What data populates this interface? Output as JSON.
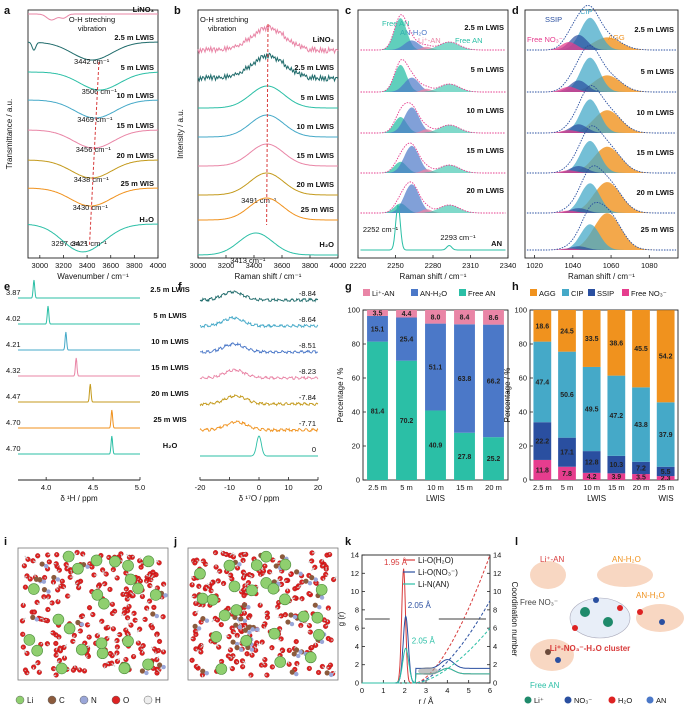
{
  "colors": {
    "teal": "#2bbfa6",
    "blue": "#4b78c8",
    "pink": "#e985a6",
    "orange": "#f0921e",
    "cyan": "#45a9c8",
    "navy": "#2a4fa0",
    "magenta": "#e63d8e",
    "darkteal": "#1f6b6b",
    "olive": "#c49a1c",
    "red": "#d83a3a",
    "gray": "#888888"
  },
  "labels": {
    "samples": [
      "LiNO₃",
      "2.5 m LWIS",
      "5 m LWIS",
      "10 m LWIS",
      "15 m LWIS",
      "20 m LWIS",
      "25 m WIS",
      "H₂O"
    ],
    "lwis_short": [
      "2.5 m LWIS",
      "5 m LWIS",
      "10 m LWIS",
      "15 m LWIS",
      "20 m LWIS"
    ],
    "lwis_25": [
      "2.5 m LWIS",
      "5 m LWIS",
      "10 m LWIS",
      "15 m LWIS",
      "20 m LWIS",
      "25 m WIS"
    ]
  },
  "chart_data": [
    {
      "panel": "a",
      "type": "line",
      "title": "",
      "xlabel": "Wavenumber / cm⁻¹",
      "ylabel": "Transmittance / a.u.",
      "xlim": [
        2900,
        4000
      ],
      "x_ticks": [
        3000,
        3200,
        3400,
        3600,
        3800,
        4000
      ],
      "annotation": "O-H streching vibration",
      "series": [
        {
          "name": "LiNO₃",
          "peak_label": ""
        },
        {
          "name": "2.5 m LWIS",
          "peak": 3442,
          "peak_label": "3442 cm⁻¹"
        },
        {
          "name": "5 m LWIS",
          "peak": 3506,
          "peak_label": "3506 cm⁻¹"
        },
        {
          "name": "10 m LWIS",
          "peak": 3469,
          "peak_label": "3469 cm⁻¹"
        },
        {
          "name": "15 m LWIS",
          "peak": 3456,
          "peak_label": "3456 cm⁻¹"
        },
        {
          "name": "20 m LWIS",
          "peak": 3438,
          "peak_label": "3438 cm⁻¹"
        },
        {
          "name": "25 m WIS",
          "peak": 3430,
          "peak_label": "3430 cm⁻¹"
        },
        {
          "name": "H₂O",
          "peak": 3421,
          "peak_label": "3421 cm⁻¹"
        },
        {
          "name": "H₂O shoulder",
          "peak": 3297,
          "peak_label": "3297 cm⁻¹"
        }
      ]
    },
    {
      "panel": "b",
      "type": "line",
      "xlabel": "Raman shift / cm⁻¹",
      "ylabel": "Intensity / a.u.",
      "xlim": [
        3000,
        4000
      ],
      "x_ticks": [
        3000,
        3200,
        3400,
        3600,
        3800,
        4000
      ],
      "annotation": "O-H stretching vibration",
      "series": [
        {
          "name": "LiNO₃",
          "peak": 3500
        },
        {
          "name": "2.5 m LWIS",
          "peak": 3500
        },
        {
          "name": "5 m LWIS",
          "peak": 3495
        },
        {
          "name": "10 m LWIS",
          "peak": 3493
        },
        {
          "name": "15 m LWIS",
          "peak": 3492
        },
        {
          "name": "20 m LWIS",
          "peak": 3491,
          "peak_label": "3491 cm⁻¹"
        },
        {
          "name": "25 m WIS",
          "peak": 3488
        },
        {
          "name": "H₂O",
          "peak": 3413,
          "peak_label": "3413 cm⁻¹"
        }
      ]
    },
    {
      "panel": "c",
      "type": "line",
      "xlabel": "Raman shift / cm⁻¹",
      "xlim": [
        2220,
        2340
      ],
      "x_ticks": [
        2220,
        2250,
        2280,
        2310,
        2340
      ],
      "legend": [
        "Free AN",
        "AN-H₂O",
        "Li⁺-AN",
        "Free AN"
      ],
      "rows": [
        "2.5 m LWIS",
        "5 m LWIS",
        "10 m LWIS",
        "15 m LWIS",
        "20 m LWIS",
        "AN"
      ],
      "peak_labels": [
        "2252 cm⁻¹",
        "2293 cm⁻¹"
      ]
    },
    {
      "panel": "d",
      "type": "line",
      "xlabel": "Raman shift / cm⁻¹",
      "xlim": [
        1015,
        1095
      ],
      "x_ticks": [
        1020,
        1040,
        1060,
        1080
      ],
      "legend": [
        "SSIP",
        "CIP",
        "Free NO₃⁻",
        "AGG"
      ],
      "rows": [
        "2.5 m LWIS",
        "5 m LWIS",
        "10 m LWIS",
        "15 m LWIS",
        "20 m LWIS",
        "25 m WIS"
      ]
    },
    {
      "panel": "e",
      "type": "line",
      "xlabel": "δ ¹H / ppm",
      "xlim": [
        3.7,
        5.0
      ],
      "x_ticks": [
        4.0,
        4.5,
        5.0
      ],
      "rows": [
        {
          "name": "2.5 m LWIS",
          "shift": 3.87
        },
        {
          "name": "5 m LWIS",
          "shift": 4.02
        },
        {
          "name": "10 m LWIS",
          "shift": 4.21
        },
        {
          "name": "15 m LWIS",
          "shift": 4.32
        },
        {
          "name": "20 m LWIS",
          "shift": 4.47
        },
        {
          "name": "25 m WIS",
          "shift": 4.7
        },
        {
          "name": "H₂O",
          "shift": 4.7
        }
      ]
    },
    {
      "panel": "f",
      "type": "line",
      "xlabel": "δ ¹⁷O / ppm",
      "xlim": [
        -20,
        20
      ],
      "x_ticks": [
        -20,
        -10,
        0,
        10,
        20
      ],
      "rows": [
        {
          "name": "2.5 m LWIS",
          "shift": -8.84
        },
        {
          "name": "5 m LWIS",
          "shift": -8.64
        },
        {
          "name": "10 m LWIS",
          "shift": -8.51
        },
        {
          "name": "15 m LWIS",
          "shift": -8.23
        },
        {
          "name": "20 m LWIS",
          "shift": -7.84
        },
        {
          "name": "25 m WIS",
          "shift": -7.71
        },
        {
          "name": "H₂O",
          "shift": 0
        }
      ]
    },
    {
      "panel": "g",
      "type": "bar",
      "stacked": true,
      "ylabel": "Percentage / %",
      "xlabel": "LWIS",
      "ylim": [
        0,
        100
      ],
      "y_ticks": [
        0,
        20,
        40,
        60,
        80,
        100
      ],
      "categories": [
        "2.5 m",
        "5 m",
        "10 m",
        "15 m",
        "20 m"
      ],
      "series": [
        {
          "name": "Free AN",
          "values": [
            81.4,
            70.2,
            40.9,
            27.8,
            25.2
          ]
        },
        {
          "name": "AN-H₂O",
          "values": [
            15.1,
            25.4,
            51.1,
            63.8,
            66.2
          ]
        },
        {
          "name": "Li⁺-AN",
          "values": [
            3.5,
            4.4,
            8.0,
            8.4,
            8.6
          ]
        }
      ],
      "legend": [
        "Li⁺-AN",
        "AN-H₂O",
        "Free AN"
      ]
    },
    {
      "panel": "h",
      "type": "bar",
      "stacked": true,
      "ylabel": "Percentage / %",
      "xlabels": [
        "LWIS",
        "WIS"
      ],
      "ylim": [
        0,
        100
      ],
      "y_ticks": [
        0,
        20,
        40,
        60,
        80,
        100
      ],
      "categories": [
        "2.5 m",
        "5 m",
        "10 m",
        "15 m",
        "20 m",
        "25 m"
      ],
      "series": [
        {
          "name": "Free NO₃⁻",
          "values": [
            11.8,
            7.8,
            4.2,
            3.9,
            3.5,
            2.3
          ]
        },
        {
          "name": "SSIP",
          "values": [
            22.2,
            17.1,
            12.8,
            10.3,
            7.2,
            5.5
          ]
        },
        {
          "name": "CIP",
          "values": [
            47.4,
            50.6,
            49.5,
            47.2,
            43.8,
            37.9
          ]
        },
        {
          "name": "AGG",
          "values": [
            18.6,
            24.5,
            33.5,
            38.6,
            45.5,
            54.2
          ]
        }
      ],
      "legend": [
        "AGG",
        "CIP",
        "SSIP",
        "Free NO₃⁻"
      ]
    },
    {
      "panel": "k",
      "type": "line",
      "xlabel": "r / Å",
      "ylabel": "g (r)",
      "ylabel2": "Coordination number",
      "xlim": [
        0,
        6
      ],
      "ylim": [
        0,
        14
      ],
      "y2lim": [
        0,
        14
      ],
      "x_ticks": [
        0,
        1,
        2,
        3,
        4,
        5,
        6
      ],
      "y_ticks": [
        0,
        2,
        4,
        6,
        8,
        10,
        12,
        14
      ],
      "series": [
        {
          "name": "Li-O(H₂O)",
          "peak_r": 1.95,
          "peak_label": "1.95 Å"
        },
        {
          "name": "Li-O(NO₃⁻)",
          "peak_r": 2.05,
          "peak_label": "2.05 Å"
        },
        {
          "name": "Li-N(AN)",
          "peak_r": 2.05,
          "peak_label": "2.05 Å"
        }
      ]
    }
  ],
  "panel_i": {
    "legend": [
      "Li",
      "C",
      "N",
      "O",
      "H"
    ]
  },
  "panel_l": {
    "labels": [
      "Li⁺-AN",
      "AN-H₂O",
      "AN-H₂O",
      "Free NO₃⁻",
      "Free AN"
    ],
    "title": "Li⁺-NO₃⁻-H₂O cluster",
    "legend": [
      "Li⁺",
      "NO₃⁻",
      "H₂O",
      "AN"
    ]
  }
}
